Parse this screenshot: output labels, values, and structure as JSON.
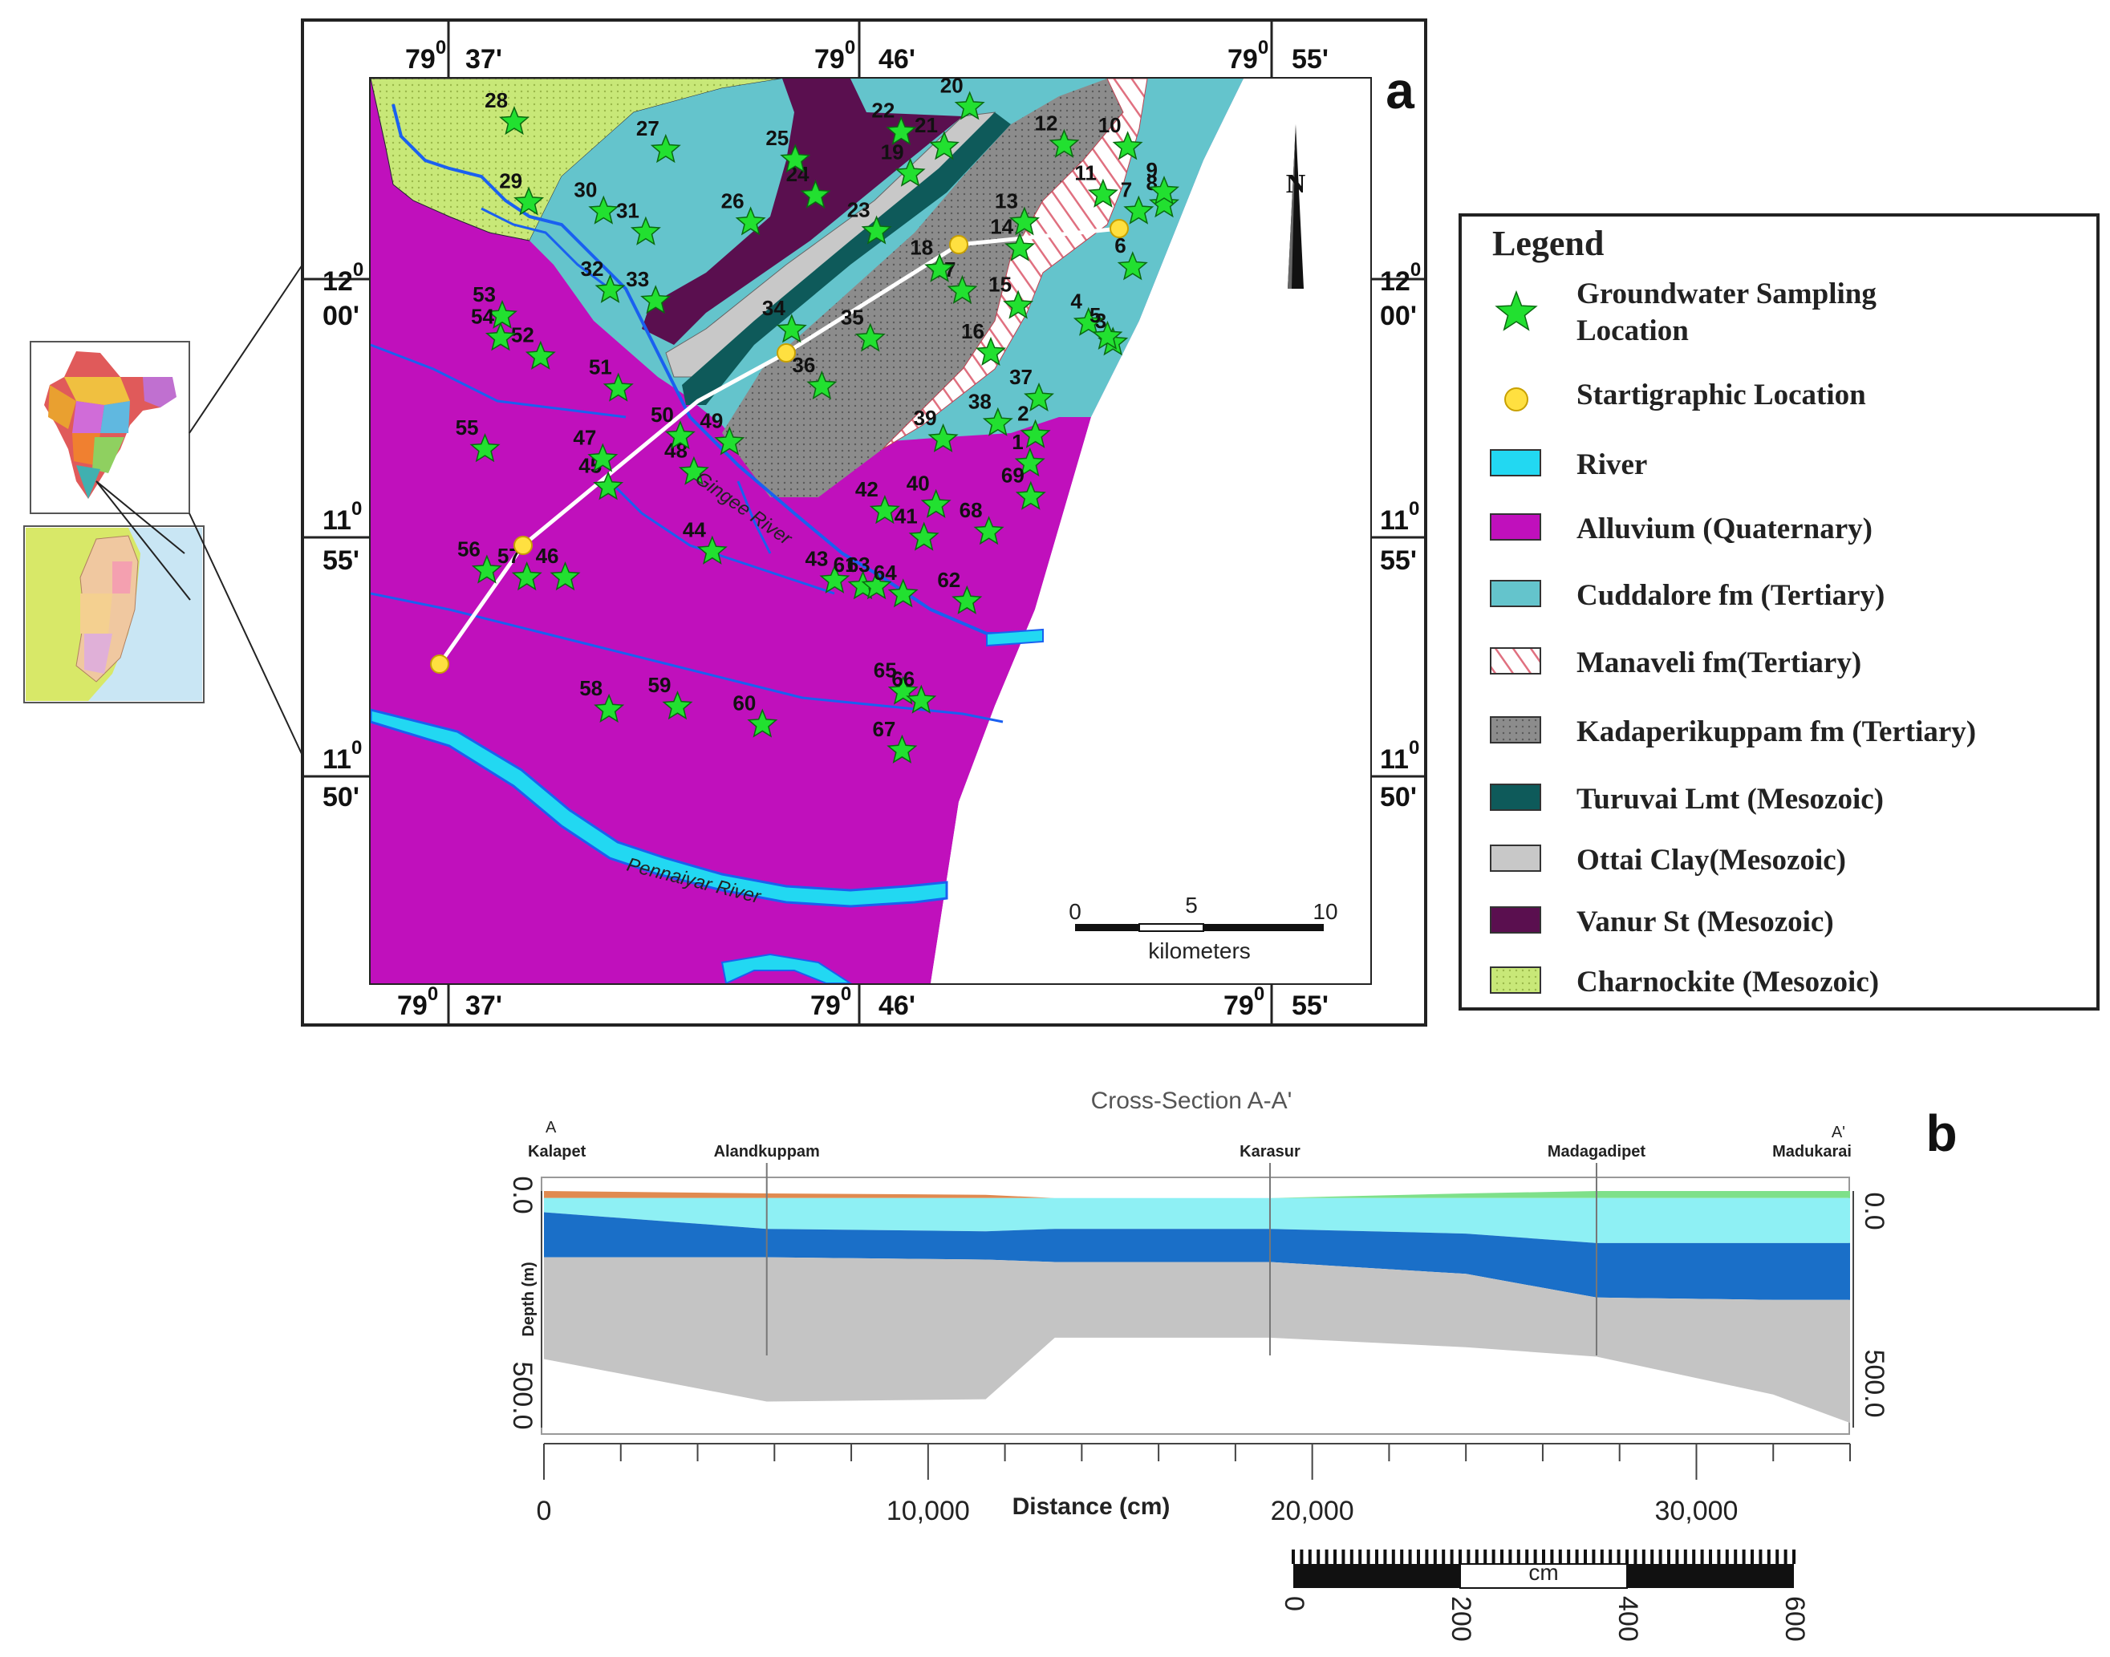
{
  "panel_a": {
    "label": "a",
    "top_ticks": [
      {
        "deg": "79",
        "sup": "0",
        "min": "37'"
      },
      {
        "deg": "79",
        "sup": "0",
        "min": "46'"
      },
      {
        "deg": "79",
        "sup": "0",
        "min": "55'"
      }
    ],
    "bottom_ticks": [
      {
        "deg": "79",
        "sup": "0",
        "min": "37'"
      },
      {
        "deg": "79",
        "sup": "0",
        "min": "46'"
      },
      {
        "deg": "79",
        "sup": "0",
        "min": "55'"
      }
    ],
    "side_ticks": [
      {
        "deg": "12",
        "sup": "0",
        "min": "00'"
      },
      {
        "deg": "11",
        "sup": "0",
        "min": "55'"
      },
      {
        "deg": "11",
        "sup": "0",
        "min": "50'"
      }
    ],
    "north_label": "N",
    "rivers": [
      "Gingee River",
      "Pennaiyar River"
    ],
    "scale_bar": {
      "ticks": [
        "0",
        "5",
        "10"
      ],
      "unit": "kilometers"
    },
    "sample_points": [
      {
        "id": "1",
        "lon": 79.829,
        "lat": 11.9382
      },
      {
        "id": "2",
        "lon": 79.831,
        "lat": 11.9477
      },
      {
        "id": "3",
        "lon": 79.8593,
        "lat": 11.9787
      },
      {
        "id": "4",
        "lon": 79.8504,
        "lat": 11.9853
      },
      {
        "id": "5",
        "lon": 79.8573,
        "lat": 11.9807
      },
      {
        "id": "6",
        "lon": 79.8665,
        "lat": 12.004
      },
      {
        "id": "7",
        "lon": 79.8687,
        "lat": 12.0227
      },
      {
        "id": "8",
        "lon": 79.878,
        "lat": 12.025
      },
      {
        "id": "9",
        "lon": 79.878,
        "lat": 12.0293
      },
      {
        "id": "10",
        "lon": 79.8647,
        "lat": 12.0443
      },
      {
        "id": "11",
        "lon": 79.8557,
        "lat": 12.0283
      },
      {
        "id": "12",
        "lon": 79.8415,
        "lat": 12.045
      },
      {
        "id": "13",
        "lon": 79.827,
        "lat": 12.019
      },
      {
        "id": "14",
        "lon": 79.8253,
        "lat": 12.0103
      },
      {
        "id": "15",
        "lon": 79.8247,
        "lat": 11.991
      },
      {
        "id": "16",
        "lon": 79.8147,
        "lat": 11.9753
      },
      {
        "id": "17",
        "lon": 79.8043,
        "lat": 11.996
      },
      {
        "id": "18",
        "lon": 79.796,
        "lat": 12.0033
      },
      {
        "id": "19",
        "lon": 79.7853,
        "lat": 12.0353
      },
      {
        "id": "20",
        "lon": 79.807,
        "lat": 12.0577
      },
      {
        "id": "21",
        "lon": 79.7977,
        "lat": 12.0443
      },
      {
        "id": "22",
        "lon": 79.782,
        "lat": 12.0493
      },
      {
        "id": "23",
        "lon": 79.773,
        "lat": 12.016
      },
      {
        "id": "24",
        "lon": 79.7507,
        "lat": 12.028
      },
      {
        "id": "25",
        "lon": 79.7433,
        "lat": 12.04
      },
      {
        "id": "26",
        "lon": 79.727,
        "lat": 12.019
      },
      {
        "id": "27",
        "lon": 79.696,
        "lat": 12.0433
      },
      {
        "id": "28",
        "lon": 79.6407,
        "lat": 12.0527
      },
      {
        "id": "29",
        "lon": 79.646,
        "lat": 12.0257
      },
      {
        "id": "30",
        "lon": 79.6733,
        "lat": 12.0227
      },
      {
        "id": "31",
        "lon": 79.6887,
        "lat": 12.0157
      },
      {
        "id": "32",
        "lon": 79.6757,
        "lat": 11.9963
      },
      {
        "id": "33",
        "lon": 79.6923,
        "lat": 11.9927
      },
      {
        "id": "34",
        "lon": 79.742,
        "lat": 11.983
      },
      {
        "id": "35",
        "lon": 79.7707,
        "lat": 11.98
      },
      {
        "id": "36",
        "lon": 79.753,
        "lat": 11.964
      },
      {
        "id": "37",
        "lon": 79.8323,
        "lat": 11.96
      },
      {
        "id": "38",
        "lon": 79.8173,
        "lat": 11.9517
      },
      {
        "id": "39",
        "lon": 79.7973,
        "lat": 11.9463
      },
      {
        "id": "40",
        "lon": 79.7947,
        "lat": 11.9243
      },
      {
        "id": "41",
        "lon": 79.7903,
        "lat": 11.9133
      },
      {
        "id": "42",
        "lon": 79.776,
        "lat": 11.9223
      },
      {
        "id": "43",
        "lon": 79.7577,
        "lat": 11.899
      },
      {
        "id": "44",
        "lon": 79.713,
        "lat": 11.9087
      },
      {
        "id": "45",
        "lon": 79.675,
        "lat": 11.9303
      },
      {
        "id": "46",
        "lon": 79.6593,
        "lat": 11.9
      },
      {
        "id": "47",
        "lon": 79.673,
        "lat": 11.9397
      },
      {
        "id": "48",
        "lon": 79.7063,
        "lat": 11.9353
      },
      {
        "id": "49",
        "lon": 79.7193,
        "lat": 11.9453
      },
      {
        "id": "50",
        "lon": 79.7013,
        "lat": 11.9473
      },
      {
        "id": "51",
        "lon": 79.6787,
        "lat": 11.9633
      },
      {
        "id": "52",
        "lon": 79.6503,
        "lat": 11.974
      },
      {
        "id": "53",
        "lon": 79.6363,
        "lat": 11.9877
      },
      {
        "id": "54",
        "lon": 79.6357,
        "lat": 11.9803
      },
      {
        "id": "55",
        "lon": 79.63,
        "lat": 11.943
      },
      {
        "id": "56",
        "lon": 79.6307,
        "lat": 11.9023
      },
      {
        "id": "57",
        "lon": 79.6453,
        "lat": 11.9
      },
      {
        "id": "58",
        "lon": 79.6753,
        "lat": 11.8557
      },
      {
        "id": "59",
        "lon": 79.7003,
        "lat": 11.8567
      },
      {
        "id": "60",
        "lon": 79.7313,
        "lat": 11.8507
      },
      {
        "id": "61",
        "lon": 79.768,
        "lat": 11.897
      },
      {
        "id": "62",
        "lon": 79.806,
        "lat": 11.892
      },
      {
        "id": "63",
        "lon": 79.773,
        "lat": 11.897
      },
      {
        "id": "64",
        "lon": 79.7827,
        "lat": 11.8943
      },
      {
        "id": "65",
        "lon": 79.7827,
        "lat": 11.8617
      },
      {
        "id": "66",
        "lon": 79.7893,
        "lat": 11.8587
      },
      {
        "id": "67",
        "lon": 79.7823,
        "lat": 11.842
      },
      {
        "id": "68",
        "lon": 79.814,
        "lat": 11.9153
      },
      {
        "id": "69",
        "lon": 79.8293,
        "lat": 11.927
      }
    ]
  },
  "legend": {
    "title": "Legend",
    "items": [
      {
        "label_lines": [
          "Groundwater Sampling",
          "Location"
        ],
        "swatch": "star"
      },
      {
        "label_lines": [
          "Startigraphic Location"
        ],
        "swatch": "circle"
      },
      {
        "label_lines": [
          "River"
        ],
        "swatch": "#22d8f2"
      },
      {
        "label_lines": [
          "Alluvium (Quaternary)"
        ],
        "swatch": "#c010bc"
      },
      {
        "label_lines": [
          "Cuddalore fm (Tertiary)"
        ],
        "swatch": "#64c4cc"
      },
      {
        "label_lines": [
          "Manaveli fm(Tertiary)"
        ],
        "swatch": "hatch-red"
      },
      {
        "label_lines": [
          "Kadaperikuppam fm (Tertiary)"
        ],
        "swatch": "#8c8c8c"
      },
      {
        "label_lines": [
          "Turuvai Lmt (Mesozoic)"
        ],
        "swatch": "#0e5a5a"
      },
      {
        "label_lines": [
          "Ottai Clay(Mesozoic)"
        ],
        "swatch": "#c8c8c8"
      },
      {
        "label_lines": [
          "Vanur St (Mesozoic)"
        ],
        "swatch": "#5a0f4f"
      },
      {
        "label_lines": [
          "Charnockite (Mesozoic)"
        ],
        "swatch": "#c8e878"
      }
    ]
  },
  "panel_b": {
    "label": "b",
    "title": "Cross-Section A-A'",
    "start_label": "A",
    "end_label": "A'",
    "places": [
      "Kalapet",
      "Alandkuppam",
      "Karasur",
      "Madagadipet",
      "Madukarai"
    ],
    "y_axis_label": "Depth (m)",
    "y_ticks_left": [
      "0.0",
      "500.0"
    ],
    "y_ticks_right": [
      "0.0",
      "500.0"
    ],
    "x_axis_label": "Distance (cm)",
    "x_ticks": [
      "0",
      "10,000",
      "20,000",
      "30,000"
    ],
    "scale_bar": {
      "ticks": [
        "0",
        "200",
        "400",
        "600"
      ],
      "unit": "cm"
    }
  },
  "chart_data": {
    "type": "area",
    "title": "Cross-Section A-A'",
    "xlabel": "Distance (cm)",
    "ylabel": "Depth (m)",
    "xlim": [
      0,
      34000
    ],
    "ylim": [
      0,
      500
    ],
    "place_positions_cm": [
      {
        "name": "Kalapet",
        "x": 0
      },
      {
        "name": "Alandkuppam",
        "x": 5800
      },
      {
        "name": "Karasur",
        "x": 18900
      },
      {
        "name": "Madagadipet",
        "x": 27400
      },
      {
        "name": "Madukarai",
        "x": 34000
      }
    ],
    "x": [
      0,
      5800,
      11500,
      13300,
      18900,
      24000,
      27400,
      32000,
      34000
    ],
    "layers": [
      {
        "color": "#e08a50",
        "top": [
          0,
          5,
          8,
          15,
          15,
          15,
          15,
          15,
          15
        ],
        "bottom": [
          15,
          15,
          15,
          15,
          15,
          15,
          15,
          15,
          15
        ]
      },
      {
        "color": "#7ee08a",
        "top": [
          15,
          15,
          15,
          15,
          15,
          5,
          0,
          0,
          0
        ],
        "bottom": [
          15,
          15,
          15,
          15,
          15,
          15,
          15,
          15,
          15
        ]
      },
      {
        "color": "#8ef0f4",
        "top": [
          15,
          15,
          15,
          15,
          15,
          15,
          15,
          15,
          15
        ],
        "bottom": [
          45,
          80,
          85,
          80,
          80,
          90,
          110,
          110,
          110
        ]
      },
      {
        "color": "#1a6fc8",
        "top": [
          45,
          80,
          85,
          80,
          80,
          90,
          110,
          110,
          110
        ],
        "bottom": [
          140,
          140,
          145,
          150,
          150,
          175,
          225,
          230,
          230
        ]
      },
      {
        "color": "#c4c4c4",
        "top": [
          140,
          140,
          145,
          150,
          150,
          175,
          225,
          230,
          230
        ],
        "bottom": [
          355,
          445,
          440,
          310,
          310,
          330,
          350,
          430,
          490
        ]
      }
    ]
  }
}
